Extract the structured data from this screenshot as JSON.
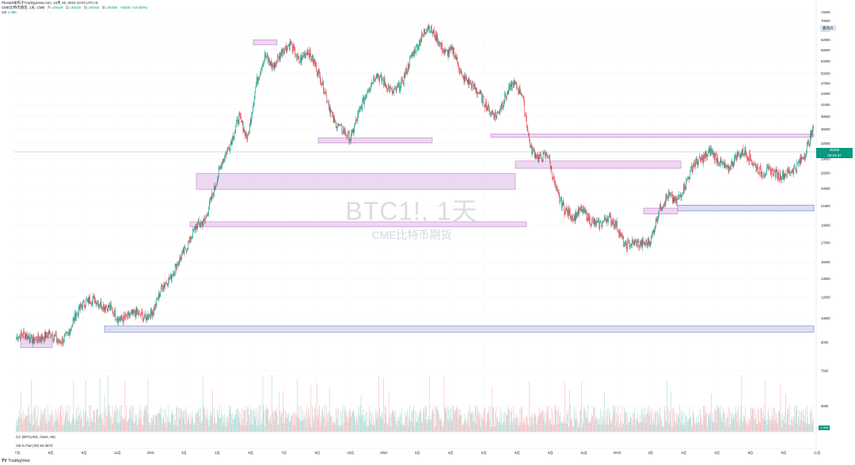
{
  "header": {
    "published": "Plustatt发布于TradingView.com,  10月 26, 2023 10:04 UTC+8",
    "symbol": "CME比特币期货, 1天, CME",
    "ohlc": [
      {
        "label": "开",
        "value": "=29425"
      },
      {
        "label": "高",
        "value": "=35420"
      },
      {
        "label": "低",
        "value": "=29160"
      },
      {
        "label": "收",
        "value": "=35250"
      },
      {
        "label": "",
        "value": "+5825 (+19.80%)"
      }
    ],
    "volume_label": "Vol",
    "volume_value": "1.08K"
  },
  "watermark": {
    "symbol": "BTC1!, 1天",
    "description": "CME比特币期货"
  },
  "oscillator": {
    "label": "CC (BTCUSD, close, 60)",
    "label2": "Vol in Fiat (30)  94.2874"
  },
  "branding": {
    "mark": "TV",
    "text": "TradingView"
  },
  "price_tag": "最高价",
  "current_price": {
    "value": "35250",
    "sub": "09:15:47"
  },
  "osc_value": "1.08K",
  "colors": {
    "up": "#089981",
    "down": "#f23645",
    "zone_pink": "#e1bee7",
    "zone_pink_border": "#ba68c8",
    "zone_blue": "#c5cae9",
    "zone_blue_border": "#5c6bc0"
  },
  "chart_data": {
    "type": "candlestick",
    "y_ticks": [
      "74000",
      "70000",
      "66000",
      "62000",
      "58000",
      "54000",
      "50000",
      "47000",
      "44000",
      "41000",
      "38000",
      "35000",
      "32000",
      "29000",
      "26500",
      "24000",
      "21500",
      "19000",
      "17000",
      "15000",
      "13500",
      "12000",
      "10500",
      "9000",
      "7500",
      "6000"
    ],
    "x_ticks": [
      "7月",
      "8月",
      "9月",
      "11月",
      "2021",
      "3月",
      "4月",
      "5月",
      "7月",
      "9月",
      "10月",
      "2022",
      "3月",
      "4月",
      "6月",
      "8月",
      "9月",
      "11月",
      "2023",
      "3月",
      "4月",
      "6月",
      "8月",
      "9月",
      "11月"
    ],
    "series": [
      {
        "values": [
          9300,
          9500,
          9100,
          9250,
          9600,
          9000,
          9400,
          10800,
          11600,
          11900,
          11400,
          11200,
          10400,
          10600,
          10900,
          10500,
          11000,
          12800,
          13600,
          15200,
          16700,
          18900,
          19500,
          23500,
          28500,
          32000,
          38000,
          33000,
          47000,
          56000,
          52000,
          58000,
          60500,
          54000,
          58000,
          52000,
          45000,
          37000,
          35000,
          33000,
          39000,
          45000,
          50000,
          47000,
          44000,
          47000,
          55000,
          61000,
          68000,
          63000,
          57000,
          58000,
          49000,
          47000,
          44000,
          40000,
          38000,
          43000,
          47000,
          44000,
          31000,
          29000,
          30000,
          23500,
          21000,
          20000,
          21000,
          19500,
          19000,
          20000,
          19000,
          16700,
          17000,
          16800,
          17200,
          21000,
          23000,
          22000,
          24500,
          28000,
          29000,
          30500,
          28500,
          27000,
          29500,
          30500,
          28000,
          26500,
          27000,
          26000,
          26500,
          27500,
          30000,
          35250
        ]
      }
    ],
    "zones": [
      {
        "price_top": 62000,
        "price_bottom": 60000,
        "color": "pink"
      },
      {
        "price_top": 34000,
        "price_bottom": 33300,
        "color": "pink"
      },
      {
        "price_top": 33200,
        "price_bottom": 32100,
        "color": "pink"
      },
      {
        "price_top": 28600,
        "price_bottom": 27300,
        "color": "pink"
      },
      {
        "price_top": 26400,
        "price_bottom": 23900,
        "color": "pink"
      },
      {
        "price_top": 19400,
        "price_bottom": 18800,
        "color": "pink"
      },
      {
        "price_top": 21600,
        "price_bottom": 20800,
        "color": "blue"
      },
      {
        "price_top": 21200,
        "price_bottom": 20400,
        "color": "pink"
      },
      {
        "price_top": 10000,
        "price_bottom": 9600,
        "color": "blue"
      },
      {
        "price_top": 9300,
        "price_bottom": 8700,
        "color": "pink"
      }
    ]
  }
}
